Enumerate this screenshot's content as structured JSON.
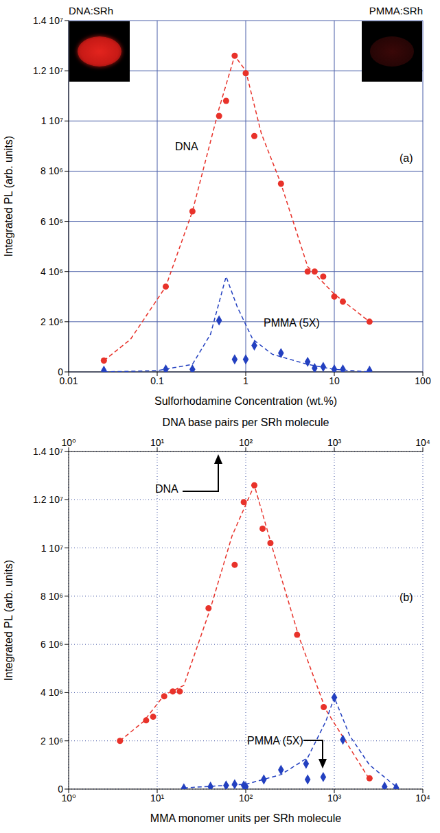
{
  "chart_data": [
    {
      "type": "scatter",
      "xlabel": "Sulforhodamine Concentration (wt.%)",
      "ylabel": "Integrated PL (arb. units)",
      "log": "x",
      "grid": true,
      "xlim": [
        0.01,
        100
      ],
      "xticks": [
        0.01,
        0.1,
        1,
        10,
        100
      ],
      "ylim": [
        0,
        14000000
      ],
      "yticks": [
        0,
        {
          "value": 2000000,
          "label": "2 10⁶"
        },
        {
          "value": 4000000,
          "label": "4 10⁶"
        },
        {
          "value": 6000000,
          "label": "6 10⁶"
        },
        {
          "value": 8000000,
          "label": "8 10⁶"
        },
        {
          "value": 10000000,
          "label": "1 10⁷"
        },
        {
          "value": 12000000,
          "label": "1.2 10⁷"
        },
        {
          "value": 14000000,
          "label": "1.4 10⁷"
        }
      ],
      "annotations": [
        "DNA:SRh",
        "PMMA:SRh",
        "(a)"
      ],
      "series": [
        {
          "color": "#e8322a",
          "marker": "none",
          "line_style": "dashed",
          "x": [
            0.025,
            0.05,
            0.125,
            0.25,
            0.5,
            0.75,
            1,
            1.5,
            2.5,
            5,
            10,
            25
          ],
          "values": [
            450000,
            1300000,
            3400000,
            6400000,
            10500000,
            12600000,
            12000000,
            9500000,
            7500000,
            4200000,
            3100000,
            2000000
          ]
        },
        {
          "color": "#2340c0",
          "marker": "none",
          "line_style": "dashed",
          "x": [
            0.025,
            0.1,
            0.25,
            0.4,
            0.6,
            0.8,
            1.2,
            2,
            5,
            10,
            25
          ],
          "values": [
            0,
            50000,
            300000,
            1500000,
            3800000,
            2600000,
            1300000,
            700000,
            300000,
            100000,
            0
          ]
        },
        {
          "name": "DNA",
          "color": "#e8322a",
          "marker": "circle",
          "line_style": "none",
          "x": [
            0.025,
            0.125,
            0.25,
            0.5,
            0.6,
            0.75,
            1,
            1.25,
            2.5,
            5,
            6,
            7.5,
            10,
            12.5,
            25
          ],
          "values": [
            450000,
            3400000,
            6400000,
            10200000,
            10800000,
            12600000,
            11900000,
            9400000,
            7500000,
            4000000,
            4000000,
            3800000,
            3000000,
            2800000,
            2000000
          ]
        },
        {
          "name": "PMMA (5X)",
          "color": "#2340c0",
          "marker": "diamond",
          "line_style": "none",
          "x": [
            0.025,
            0.125,
            0.25,
            0.5,
            0.75,
            1,
            1.25,
            2.5,
            5,
            6,
            7.5,
            10,
            12.5,
            25
          ],
          "values": [
            50000,
            100000,
            100000,
            2050000,
            500000,
            500000,
            1050000,
            750000,
            400000,
            150000,
            200000,
            100000,
            100000,
            50000
          ]
        }
      ]
    },
    {
      "type": "scatter",
      "xlabel": "MMA monomer units per SRh molecule",
      "x2label": "DNA base pairs per SRh molecule",
      "ylabel": "Integrated PL (arb. units)",
      "log": "x",
      "grid": true,
      "xlim": [
        1,
        10000
      ],
      "xticks": [
        {
          "value": 1,
          "label": "10⁰"
        },
        {
          "value": 10,
          "label": "10¹"
        },
        {
          "value": 100,
          "label": "10²"
        },
        {
          "value": 1000,
          "label": "10³"
        },
        {
          "value": 10000,
          "label": "10⁴"
        }
      ],
      "x2lim": [
        1,
        10000
      ],
      "x2ticks": [
        {
          "value": 1,
          "label": "10⁰"
        },
        {
          "value": 10,
          "label": "10¹"
        },
        {
          "value": 100,
          "label": "10²"
        },
        {
          "value": 1000,
          "label": "10³"
        },
        {
          "value": 10000,
          "label": "10⁴"
        }
      ],
      "ylim": [
        0,
        14000000
      ],
      "yticks": [
        0,
        {
          "value": 2000000,
          "label": "2 10⁶"
        },
        {
          "value": 4000000,
          "label": "4 10⁶"
        },
        {
          "value": 6000000,
          "label": "6 10⁶"
        },
        {
          "value": 8000000,
          "label": "8 10⁶"
        },
        {
          "value": 10000000,
          "label": "1 10⁷"
        },
        {
          "value": 12000000,
          "label": "1.2 10⁷"
        },
        {
          "value": 14000000,
          "label": "1.4 10⁷"
        }
      ],
      "annotations": [
        "(b)"
      ],
      "series": [
        {
          "axis": "x2",
          "color": "#e8322a",
          "marker": "none",
          "line_style": "dashed",
          "x": [
            3.8,
            7,
            12,
            20,
            40,
            70,
            125,
            200,
            400,
            800,
            2500
          ],
          "values": [
            2000000,
            2800000,
            3900000,
            4300000,
            7500000,
            10500000,
            12600000,
            10000000,
            6300000,
            3300000,
            400000
          ]
        },
        {
          "color": "#2340c0",
          "marker": "none",
          "line_style": "dashed",
          "x": [
            20,
            100,
            250,
            500,
            800,
            1000,
            1500,
            2500,
            5000
          ],
          "values": [
            50000,
            200000,
            600000,
            1300000,
            2800000,
            3800000,
            2200000,
            1000000,
            100000
          ]
        },
        {
          "name": "DNA",
          "axis": "x2",
          "color": "#e8322a",
          "marker": "circle",
          "line_style": "none",
          "x": [
            3.8,
            7.5,
            9,
            12,
            15,
            18,
            38,
            75,
            95,
            125,
            155,
            190,
            380,
            760,
            2500
          ],
          "values": [
            2000000,
            2850000,
            3000000,
            3850000,
            4050000,
            4050000,
            7500000,
            9300000,
            11900000,
            12600000,
            10800000,
            10200000,
            6400000,
            3400000,
            450000
          ]
        },
        {
          "name": "PMMA (5X)",
          "color": "#2340c0",
          "marker": "diamond",
          "line_style": "none",
          "x": [
            20,
            40,
            60,
            75,
            95,
            100,
            160,
            250,
            480,
            500,
            750,
            1000,
            1250,
            3700,
            5000
          ],
          "values": [
            30000,
            100000,
            150000,
            200000,
            150000,
            100000,
            400000,
            800000,
            1050000,
            400000,
            500000,
            3800000,
            2050000,
            100000,
            50000
          ]
        }
      ]
    }
  ]
}
